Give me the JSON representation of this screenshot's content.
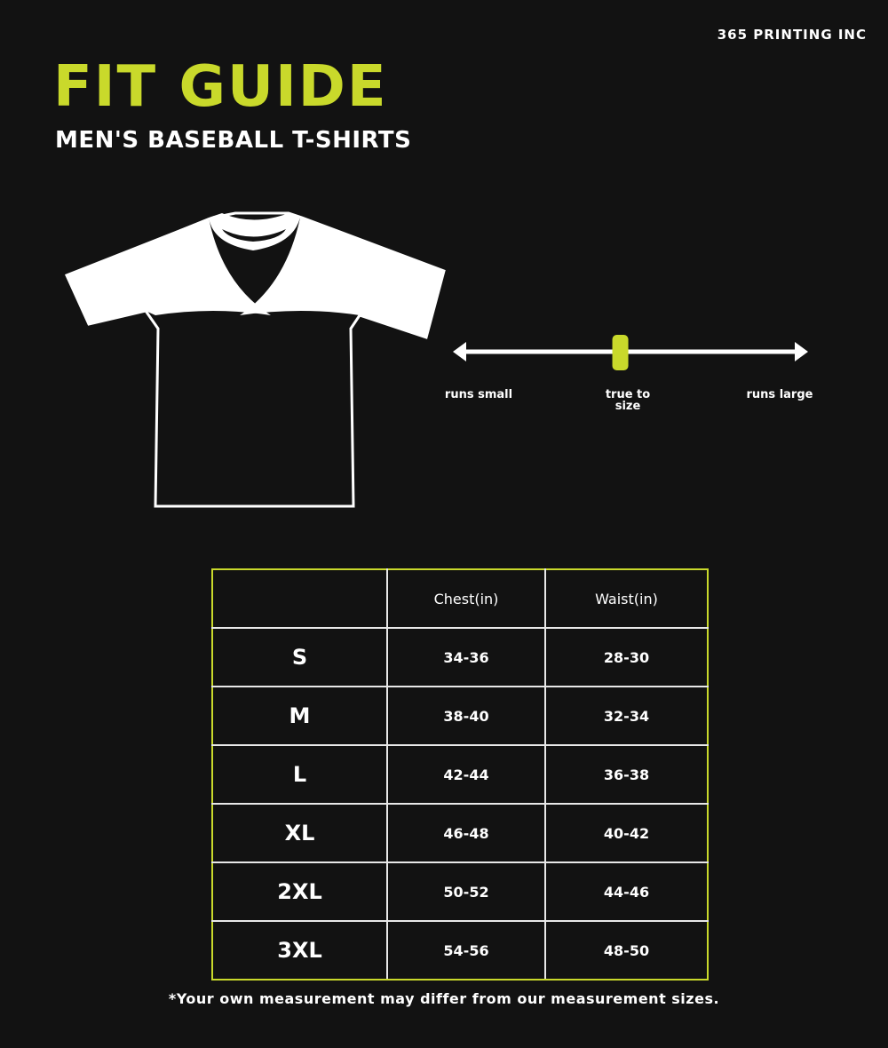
{
  "brand": "365 PRINTING INC",
  "title": "FIT GUIDE",
  "subtitle": "MEN'S BASEBALL T-SHIRTS",
  "accent_color": "#c9d92b",
  "fit_scale": {
    "left_label": "runs small",
    "center_label": "true to size",
    "right_label": "runs large",
    "value_fraction": 0.47
  },
  "table": {
    "headers": [
      "",
      "Chest(in)",
      "Waist(in)"
    ],
    "rows": [
      {
        "size": "S",
        "chest": "34-36",
        "waist": "28-30"
      },
      {
        "size": "M",
        "chest": "38-40",
        "waist": "32-34"
      },
      {
        "size": "L",
        "chest": "42-44",
        "waist": "36-38"
      },
      {
        "size": "XL",
        "chest": "46-48",
        "waist": "40-42"
      },
      {
        "size": "2XL",
        "chest": "50-52",
        "waist": "44-46"
      },
      {
        "size": "3XL",
        "chest": "54-56",
        "waist": "48-50"
      }
    ]
  },
  "note": "*Your own measurement may differ from our measurement sizes."
}
